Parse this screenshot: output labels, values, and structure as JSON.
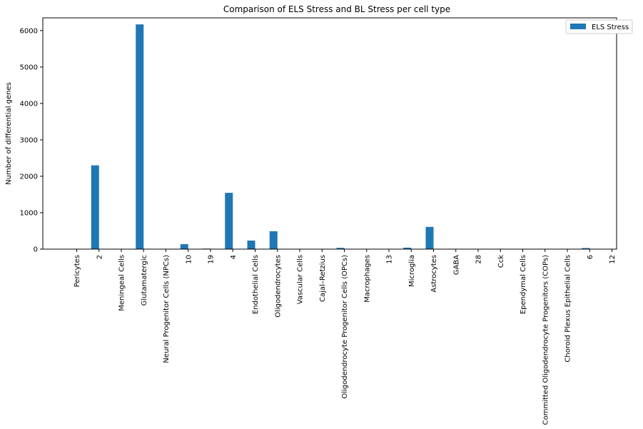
{
  "chart_data": {
    "type": "bar",
    "title": "Comparison of ELS Stress and BL Stress per cell type",
    "xlabel": "",
    "ylabel": "Number of differential genes",
    "ylim": [
      0,
      6350
    ],
    "yticks": [
      0,
      1000,
      2000,
      3000,
      4000,
      5000,
      6000
    ],
    "legend_position": "top-right",
    "grid": false,
    "categories": [
      "Pericytes",
      "2",
      "Meningeal Cells",
      "Glutamatergic",
      "Neural Progenitor Cells (NPCs)",
      "10",
      "19",
      "4",
      "Endothelial Cells",
      "Oligodendrocytes",
      "Vascular Cells",
      "Cajal–Retzius",
      "Oligodendrocyte Progenitor Cells (OPCs)",
      "Macrophages",
      "13",
      "Microglia",
      "Astrocytes",
      "GABA",
      "28",
      "Cck",
      "Ependymal Cells",
      "Committed Oligodendrocyte Progenitors (COPs)",
      "Choroid Plexus Epithelial Cells",
      "6",
      "12"
    ],
    "series": [
      {
        "name": "ELS Stress",
        "color": "#1f77b4",
        "values": [
          0,
          2300,
          0,
          6170,
          0,
          135,
          15,
          1545,
          235,
          490,
          0,
          0,
          35,
          0,
          0,
          40,
          610,
          0,
          0,
          0,
          0,
          0,
          0,
          30,
          0
        ]
      }
    ]
  }
}
